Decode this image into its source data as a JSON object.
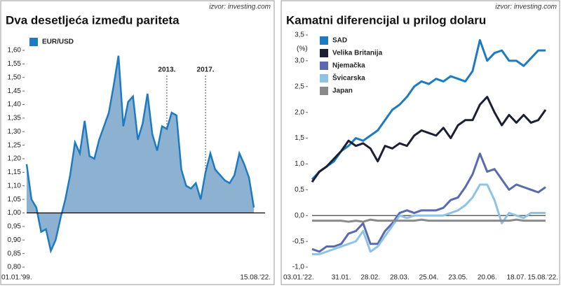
{
  "chart_data": [
    {
      "type": "area",
      "title": "Dva desetljeća između pariteta",
      "source": "izvor: investing.com",
      "categories": [
        "01.01.'99.",
        null,
        null,
        null,
        null,
        null,
        null,
        null,
        null,
        null,
        null,
        null,
        null,
        null,
        null,
        null,
        null,
        null,
        null,
        null,
        null,
        null,
        null,
        null,
        null,
        null,
        null,
        null,
        null,
        null,
        null,
        null,
        null,
        null,
        null,
        null,
        null,
        null,
        null,
        null,
        null,
        null,
        null,
        null,
        null,
        null,
        null,
        "15.08.'22."
      ],
      "series": [
        {
          "name": "EUR/USD",
          "color": "#1f7bc1",
          "fill": "#7fa8cc",
          "values": [
            1.18,
            1.05,
            1.02,
            0.93,
            0.94,
            0.86,
            0.9,
            0.98,
            1.05,
            1.14,
            1.26,
            1.22,
            1.34,
            1.21,
            1.2,
            1.27,
            1.32,
            1.37,
            1.47,
            1.58,
            1.32,
            1.41,
            1.43,
            1.27,
            1.33,
            1.44,
            1.29,
            1.23,
            1.32,
            1.31,
            1.37,
            1.36,
            1.16,
            1.1,
            1.09,
            1.11,
            1.05,
            1.15,
            1.22,
            1.16,
            1.14,
            1.12,
            1.11,
            1.14,
            1.22,
            1.18,
            1.13,
            1.02
          ]
        }
      ],
      "baseline": 1,
      "annotations": [
        {
          "text": "2013.",
          "x": 29
        },
        {
          "text": "2017.",
          "x": 37
        }
      ],
      "ylim": [
        0.8,
        1.6
      ],
      "yticks": [
        {
          "value": 0.8,
          "label": "0,80"
        },
        {
          "value": 0.85,
          "label": "0,85"
        },
        {
          "value": 0.9,
          "label": "0,90"
        },
        {
          "value": 0.95,
          "label": "0,95"
        },
        {
          "value": 1.0,
          "label": "1,00"
        },
        {
          "value": 1.05,
          "label": "1,05"
        },
        {
          "value": 1.1,
          "label": "1,10"
        },
        {
          "value": 1.15,
          "label": "1,15"
        },
        {
          "value": 1.2,
          "label": "1,20"
        },
        {
          "value": 1.25,
          "label": "1,25"
        },
        {
          "value": 1.3,
          "label": "1,30"
        },
        {
          "value": 1.35,
          "label": "1,35"
        },
        {
          "value": 1.4,
          "label": "1,40"
        },
        {
          "value": 1.45,
          "label": "1,45"
        },
        {
          "value": 1.5,
          "label": "1,50"
        },
        {
          "value": 1.55,
          "label": "1,55"
        },
        {
          "value": 1.6,
          "label": "1,60"
        }
      ]
    },
    {
      "type": "line",
      "title": "Kamatni diferencijal u prilog dolaru",
      "source": "izvor: investing.com",
      "ylabel": "(%)",
      "categories": [
        "03.01.'22.",
        null,
        null,
        null,
        "31.01.",
        null,
        null,
        null,
        "28.02.",
        null,
        null,
        null,
        "28.03.",
        null,
        null,
        null,
        "25.04.",
        null,
        null,
        null,
        "23.05.",
        null,
        null,
        null,
        "20.06.",
        null,
        null,
        null,
        "18.07.",
        null,
        null,
        null,
        "15.08.'22."
      ],
      "series": [
        {
          "name": "SAD",
          "color": "#1f7bc1",
          "values": [
            0.7,
            0.85,
            0.95,
            1.05,
            1.25,
            1.35,
            1.5,
            1.45,
            1.55,
            1.65,
            1.85,
            2.05,
            2.15,
            2.3,
            2.5,
            2.6,
            2.55,
            2.65,
            2.6,
            2.7,
            2.65,
            2.6,
            2.8,
            3.4,
            3.0,
            3.15,
            3.2,
            3.0,
            3.0,
            2.9,
            3.05,
            3.2,
            3.2
          ]
        },
        {
          "name": "Velika Britanija",
          "color": "#1a1f33",
          "values": [
            0.65,
            0.85,
            0.95,
            1.1,
            1.25,
            1.45,
            1.35,
            1.4,
            1.3,
            1.05,
            1.35,
            1.3,
            1.4,
            1.35,
            1.55,
            1.65,
            1.6,
            1.55,
            1.7,
            1.5,
            1.75,
            1.85,
            1.85,
            2.15,
            2.3,
            2.0,
            1.75,
            1.95,
            1.8,
            1.95,
            1.8,
            1.85,
            2.05
          ]
        },
        {
          "name": "Njemačka",
          "color": "#5a6aae",
          "values": [
            -0.65,
            -0.7,
            -0.6,
            -0.6,
            -0.55,
            -0.35,
            -0.3,
            -0.15,
            -0.55,
            -0.55,
            -0.3,
            -0.15,
            0.05,
            0.1,
            0.05,
            0.1,
            0.1,
            0.1,
            0.15,
            0.3,
            0.35,
            0.55,
            0.8,
            1.2,
            0.85,
            0.9,
            0.7,
            0.5,
            0.6,
            0.55,
            0.5,
            0.45,
            0.55
          ]
        },
        {
          "name": "Švicarska",
          "color": "#8ec3e6",
          "values": [
            -0.75,
            -0.75,
            -0.7,
            -0.65,
            -0.6,
            -0.55,
            -0.5,
            -0.3,
            -0.7,
            -0.6,
            -0.4,
            -0.2,
            0.0,
            -0.05,
            0.0,
            0.0,
            0.0,
            0.0,
            0.0,
            0.05,
            0.1,
            0.2,
            0.35,
            0.6,
            0.6,
            0.3,
            -0.15,
            0.05,
            0.0,
            -0.05,
            0.05,
            0.05,
            0.05
          ]
        },
        {
          "name": "Japan",
          "color": "#8a8a8a",
          "values": [
            -0.1,
            -0.1,
            -0.1,
            -0.1,
            -0.1,
            -0.12,
            -0.1,
            -0.12,
            -0.08,
            -0.1,
            -0.1,
            -0.1,
            -0.1,
            -0.1,
            -0.1,
            -0.08,
            -0.1,
            -0.1,
            -0.1,
            -0.1,
            -0.1,
            -0.1,
            -0.1,
            -0.1,
            -0.1,
            -0.1,
            -0.1,
            -0.1,
            -0.08,
            -0.1,
            -0.1,
            -0.1,
            -0.1
          ]
        }
      ],
      "baseline": 0,
      "ylim": [
        -1.0,
        3.5
      ],
      "yticks": [
        {
          "value": -1.0,
          "label": "-1,0"
        },
        {
          "value": -0.5,
          "label": "-0,5"
        },
        {
          "value": 0.0,
          "label": "0,0"
        },
        {
          "value": 0.5,
          "label": "0,5"
        },
        {
          "value": 1.0,
          "label": "1,0"
        },
        {
          "value": 1.5,
          "label": "1,5"
        },
        {
          "value": 2.0,
          "label": "2,0"
        },
        {
          "value": 2.5,
          "label": "2,5"
        },
        {
          "value": 3.0,
          "label": "3,0"
        },
        {
          "value": 3.5,
          "label": "3,5"
        }
      ]
    }
  ]
}
